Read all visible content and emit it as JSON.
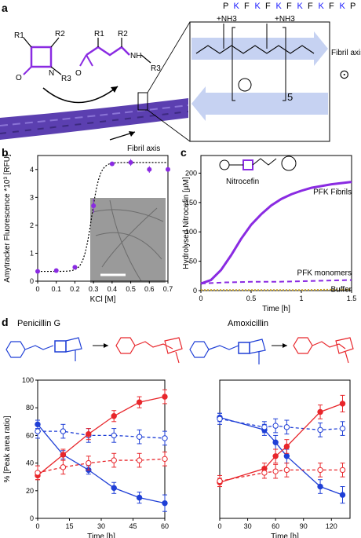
{
  "panels": {
    "a": "a",
    "b": "b",
    "c": "c",
    "d": "d"
  },
  "sequence": [
    "P",
    "K",
    "F",
    "K",
    "F",
    "K",
    "F",
    "K",
    "F",
    "K",
    "F",
    "K",
    "P"
  ],
  "sequence_colors": {
    "P": "#000000",
    "K": "#1a1aff",
    "F": "#000000"
  },
  "panel_a": {
    "r1": "R1",
    "r2": "R2",
    "r3": "R3",
    "n": "N",
    "o": "O",
    "nh": "NH",
    "nh3": "+NH3",
    "repeat": "5",
    "fibril_axis": "Fibril axis",
    "fibril_axis_side": "Fibril axis",
    "axis_symbol": "⊙"
  },
  "colors": {
    "purple": "#8a2be2",
    "blue": "#1f3fd6",
    "red": "#e8262b",
    "rope": "#5b3fb0"
  },
  "chart_data": [
    {
      "id": "b",
      "type": "scatter",
      "ylabel": "Amytracker Fluorescence *10³ [RFU]",
      "xlabel": "KCl [M]",
      "xlim": [
        0,
        0.7
      ],
      "ylim": [
        0,
        4.5
      ],
      "xticks": [
        "0",
        "0.1",
        "0.2",
        "0.3",
        "0.4",
        "0.5",
        "0.6",
        "0.7"
      ],
      "yticks": [
        "0",
        "1",
        "2",
        "3",
        "4"
      ],
      "x": [
        0,
        0.1,
        0.2,
        0.3,
        0.4,
        0.5,
        0.6,
        0.7
      ],
      "y": [
        0.35,
        0.38,
        0.5,
        2.7,
        4.2,
        4.25,
        4.0,
        4.0
      ],
      "err": [
        0.05,
        0.05,
        0.05,
        0.25,
        0.08,
        0.12,
        0.12,
        0.05
      ],
      "fit": "sigmoid"
    },
    {
      "id": "c",
      "type": "line",
      "ylabel": "Hydrolysed Nitrocefin [µM]",
      "xlabel": "Time [h]",
      "xlim": [
        0,
        1.5
      ],
      "ylim": [
        0,
        230
      ],
      "xticks": [
        "0",
        "0.5",
        "1",
        "1.5"
      ],
      "yticks": [
        "0",
        "50",
        "100",
        "150",
        "200"
      ],
      "series": [
        {
          "name": "PFK Fibrils",
          "style": "solid",
          "color": "#8a2be2",
          "x": [
            0,
            0.1,
            0.2,
            0.3,
            0.4,
            0.5,
            0.6,
            0.7,
            0.8,
            0.9,
            1.0,
            1.1,
            1.2,
            1.3,
            1.4,
            1.5
          ],
          "y": [
            12,
            18,
            35,
            60,
            88,
            112,
            130,
            145,
            156,
            164,
            170,
            175,
            178,
            181,
            183,
            185
          ]
        },
        {
          "name": "PFK monomers",
          "style": "dashed",
          "color": "#8a2be2",
          "x": [
            0,
            0.25,
            0.5,
            0.75,
            1.0,
            1.25,
            1.5
          ],
          "y": [
            12,
            14,
            15,
            15,
            16,
            17,
            18
          ]
        },
        {
          "name": "Buffer",
          "style": "dotted",
          "color": "#c8a020",
          "x": [
            0,
            0.5,
            1.0,
            1.5
          ],
          "y": [
            1,
            1,
            1,
            2
          ]
        }
      ],
      "compound": "Nitrocefin"
    },
    {
      "id": "d1",
      "type": "line",
      "title": "Penicillin G",
      "ylabel": "% [Peak area ratio]",
      "xlabel": "Time [h]",
      "xlim": [
        0,
        60
      ],
      "ylim": [
        0,
        100
      ],
      "xticks": [
        "0",
        "15",
        "30",
        "45",
        "60"
      ],
      "yticks": [
        "0",
        "20",
        "40",
        "60",
        "80",
        "100"
      ],
      "series": [
        {
          "color": "#1f3fd6",
          "style": "solid",
          "filled": true,
          "x": [
            0,
            12,
            24,
            36,
            48,
            60
          ],
          "y": [
            68,
            46,
            35,
            22,
            15,
            11
          ],
          "err": [
            3,
            3,
            3,
            4,
            4,
            6
          ]
        },
        {
          "color": "#1f3fd6",
          "style": "dashed",
          "filled": false,
          "x": [
            0,
            12,
            24,
            36,
            48,
            60
          ],
          "y": [
            63,
            63,
            60,
            60,
            59,
            58
          ],
          "err": [
            5,
            5,
            5,
            5,
            5,
            5
          ]
        },
        {
          "color": "#e8262b",
          "style": "solid",
          "filled": true,
          "x": [
            0,
            12,
            24,
            36,
            48,
            60
          ],
          "y": [
            31,
            46,
            61,
            74,
            84,
            88
          ],
          "err": [
            3,
            4,
            4,
            4,
            4,
            5
          ]
        },
        {
          "color": "#e8262b",
          "style": "dashed",
          "filled": false,
          "x": [
            0,
            12,
            24,
            36,
            48,
            60
          ],
          "y": [
            33,
            37,
            40,
            42,
            42,
            43
          ],
          "err": [
            5,
            5,
            5,
            5,
            5,
            5
          ]
        }
      ]
    },
    {
      "id": "d2",
      "type": "line",
      "title": "Amoxicillin",
      "ylabel": "",
      "xlabel": "Time [h]",
      "xlim": [
        0,
        140
      ],
      "ylim": [
        0,
        100
      ],
      "xticks": [
        "0",
        "30",
        "60",
        "90",
        "120"
      ],
      "yticks": [],
      "series": [
        {
          "color": "#1f3fd6",
          "style": "solid",
          "filled": true,
          "x": [
            0,
            48,
            60,
            72,
            108,
            132
          ],
          "y": [
            73,
            64,
            55,
            45,
            23,
            17
          ],
          "err": [
            3,
            4,
            5,
            5,
            5,
            6
          ]
        },
        {
          "color": "#1f3fd6",
          "style": "dashed",
          "filled": false,
          "x": [
            0,
            48,
            60,
            72,
            108,
            132
          ],
          "y": [
            72,
            66,
            67,
            66,
            64,
            65
          ],
          "err": [
            4,
            4,
            5,
            5,
            5,
            5
          ]
        },
        {
          "color": "#e8262b",
          "style": "solid",
          "filled": true,
          "x": [
            0,
            48,
            60,
            72,
            108,
            132
          ],
          "y": [
            26,
            36,
            45,
            52,
            77,
            83
          ],
          "err": [
            3,
            4,
            5,
            5,
            5,
            6
          ]
        },
        {
          "color": "#e8262b",
          "style": "dashed",
          "filled": false,
          "x": [
            0,
            48,
            60,
            72,
            108,
            132
          ],
          "y": [
            27,
            33,
            34,
            35,
            35,
            35
          ],
          "err": [
            4,
            4,
            5,
            5,
            5,
            5
          ]
        }
      ]
    }
  ]
}
